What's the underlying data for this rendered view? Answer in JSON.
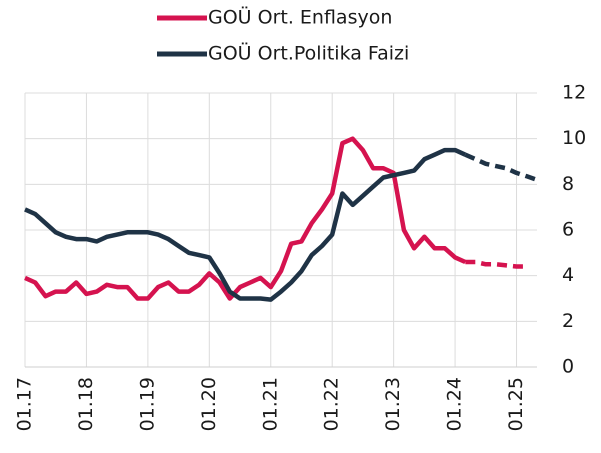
{
  "chart_data": {
    "type": "line",
    "categories": [
      "01.17",
      null,
      null,
      null,
      null,
      null,
      "01.18",
      null,
      null,
      null,
      null,
      null,
      "01.19",
      null,
      null,
      null,
      null,
      null,
      "01.20",
      null,
      null,
      null,
      null,
      null,
      "01.21",
      null,
      null,
      null,
      null,
      null,
      "01.22",
      null,
      null,
      null,
      null,
      null,
      "01.23",
      null,
      null,
      null,
      null,
      null,
      "01.24",
      null,
      null,
      null,
      null,
      null,
      "01.25",
      null,
      null
    ],
    "series": [
      {
        "name": "GOÜ Ort. Enflasyon",
        "color": "#d5134f",
        "values": [
          3.9,
          3.7,
          3.1,
          3.3,
          3.3,
          3.7,
          3.2,
          3.3,
          3.6,
          3.5,
          3.5,
          3.0,
          3.0,
          3.5,
          3.7,
          3.3,
          3.3,
          3.6,
          4.1,
          3.7,
          3.0,
          3.5,
          3.7,
          3.9,
          3.5,
          4.2,
          5.4,
          5.5,
          6.3,
          6.9,
          7.6,
          9.8,
          10.0,
          9.5,
          8.7,
          8.7,
          8.5,
          6.0,
          5.2,
          5.7,
          5.2,
          5.2,
          4.8,
          4.6,
          4.6,
          4.5,
          4.5,
          4.45,
          4.4,
          4.4,
          null
        ]
      },
      {
        "name": "GOÜ Ort.Politika Faizi",
        "color": "#1f3346",
        "values": [
          6.9,
          6.7,
          6.3,
          5.9,
          5.7,
          5.6,
          5.6,
          5.5,
          5.7,
          5.8,
          5.9,
          5.9,
          5.9,
          5.8,
          5.6,
          5.3,
          5.0,
          4.9,
          4.8,
          4.1,
          3.3,
          3.0,
          3.0,
          3.0,
          2.95,
          3.3,
          3.7,
          4.2,
          4.9,
          5.3,
          5.8,
          7.6,
          7.1,
          7.5,
          7.9,
          8.3,
          8.4,
          8.5,
          8.6,
          9.1,
          9.3,
          9.5,
          9.5,
          9.3,
          9.1,
          8.9,
          8.8,
          8.7,
          8.5,
          8.35,
          8.2
        ]
      }
    ],
    "dash_from": 43,
    "ylim": [
      0,
      12
    ],
    "yticks": [
      0,
      2,
      4,
      6,
      8,
      10,
      12
    ],
    "grid": true
  }
}
